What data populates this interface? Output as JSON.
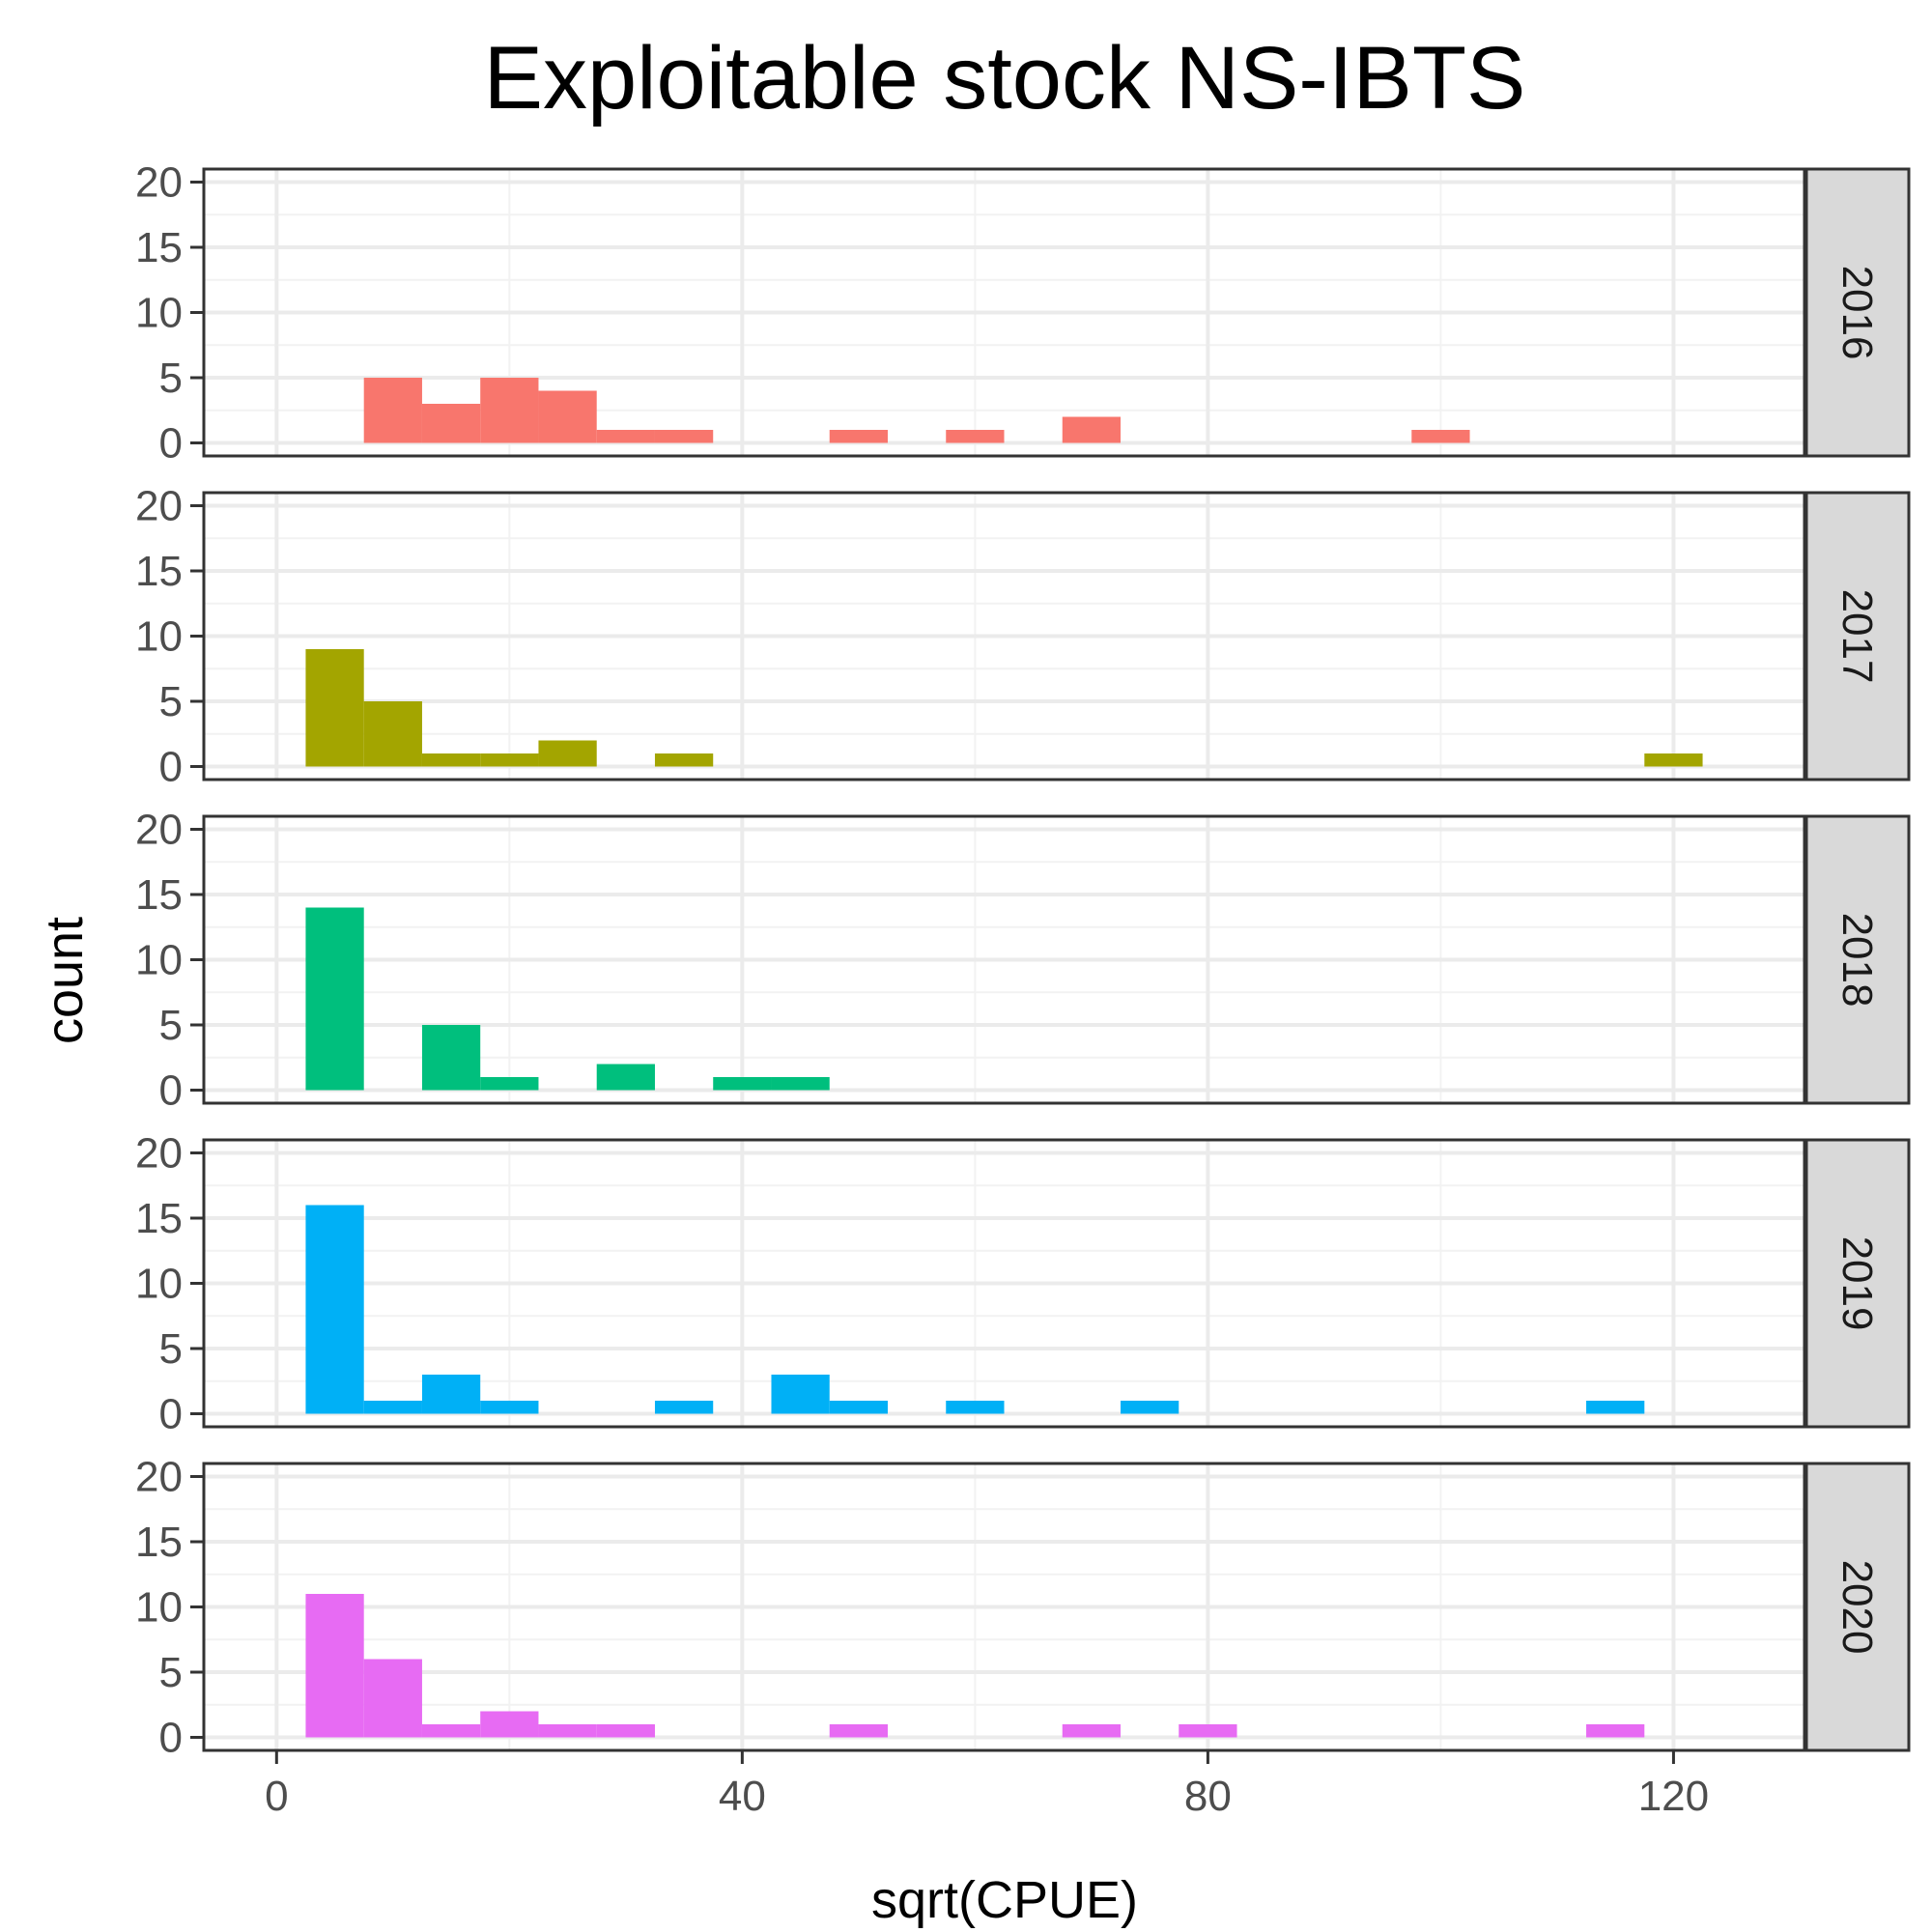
{
  "chart_data": {
    "type": "bar",
    "title": "Exploitable stock NS-IBTS",
    "xlabel": "sqrt(CPUE)",
    "ylabel": "count",
    "xlim": [
      -6.25,
      131.25
    ],
    "ylim": [
      -1,
      21
    ],
    "x_ticks": [
      0,
      40,
      80,
      120
    ],
    "y_ticks": [
      0,
      5,
      10,
      15,
      20
    ],
    "bin_width": 5,
    "grid": true,
    "legend": "none",
    "facets": [
      {
        "label": "2016",
        "color": "#F8766D",
        "bins": [
          {
            "x": 10,
            "count": 5
          },
          {
            "x": 15,
            "count": 3
          },
          {
            "x": 20,
            "count": 5
          },
          {
            "x": 25,
            "count": 4
          },
          {
            "x": 30,
            "count": 1
          },
          {
            "x": 35,
            "count": 1
          },
          {
            "x": 50,
            "count": 1
          },
          {
            "x": 60,
            "count": 1
          },
          {
            "x": 70,
            "count": 2
          },
          {
            "x": 100,
            "count": 1
          }
        ]
      },
      {
        "label": "2017",
        "color": "#A3A500",
        "bins": [
          {
            "x": 5,
            "count": 9
          },
          {
            "x": 10,
            "count": 5
          },
          {
            "x": 15,
            "count": 1
          },
          {
            "x": 20,
            "count": 1
          },
          {
            "x": 25,
            "count": 2
          },
          {
            "x": 35,
            "count": 1
          },
          {
            "x": 120,
            "count": 1
          }
        ]
      },
      {
        "label": "2018",
        "color": "#00BF7D",
        "bins": [
          {
            "x": 5,
            "count": 14
          },
          {
            "x": 15,
            "count": 5
          },
          {
            "x": 20,
            "count": 1
          },
          {
            "x": 30,
            "count": 2
          },
          {
            "x": 40,
            "count": 1
          },
          {
            "x": 45,
            "count": 1
          }
        ]
      },
      {
        "label": "2019",
        "color": "#00B0F6",
        "bins": [
          {
            "x": 5,
            "count": 16
          },
          {
            "x": 10,
            "count": 1
          },
          {
            "x": 15,
            "count": 3
          },
          {
            "x": 20,
            "count": 1
          },
          {
            "x": 35,
            "count": 1
          },
          {
            "x": 45,
            "count": 3
          },
          {
            "x": 50,
            "count": 1
          },
          {
            "x": 60,
            "count": 1
          },
          {
            "x": 75,
            "count": 1
          },
          {
            "x": 115,
            "count": 1
          }
        ]
      },
      {
        "label": "2020",
        "color": "#E76BF3",
        "bins": [
          {
            "x": 5,
            "count": 11
          },
          {
            "x": 10,
            "count": 6
          },
          {
            "x": 15,
            "count": 1
          },
          {
            "x": 20,
            "count": 2
          },
          {
            "x": 25,
            "count": 1
          },
          {
            "x": 30,
            "count": 1
          },
          {
            "x": 50,
            "count": 1
          },
          {
            "x": 70,
            "count": 1
          },
          {
            "x": 80,
            "count": 1
          },
          {
            "x": 115,
            "count": 1
          }
        ]
      }
    ]
  },
  "colors": {
    "panel_border": "#333333",
    "grid_major": "#EBEBEB",
    "grid_minor": "#F2F2F2",
    "strip_fill": "#D9D9D9",
    "tick_text": "#4D4D4D"
  }
}
